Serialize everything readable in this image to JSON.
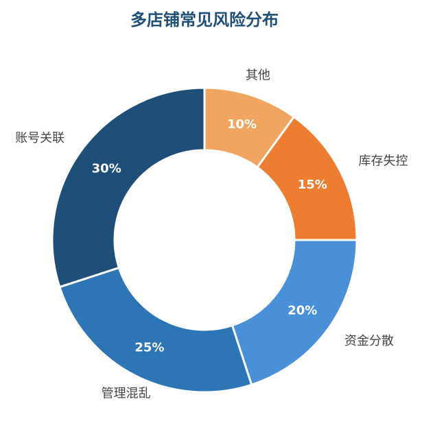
{
  "chart_data": {
    "type": "donut",
    "title": "多店铺常见风险分布",
    "categories": [
      "其他",
      "库存失控",
      "资金分散",
      "管理混乱",
      "账号关联"
    ],
    "values": [
      10,
      15,
      20,
      25,
      30
    ],
    "value_labels": [
      "10%",
      "15%",
      "20%",
      "25%",
      "30%"
    ],
    "colors": [
      "#f0a660",
      "#ed7d31",
      "#4a90d9",
      "#2e75b6",
      "#1f4e79"
    ]
  }
}
